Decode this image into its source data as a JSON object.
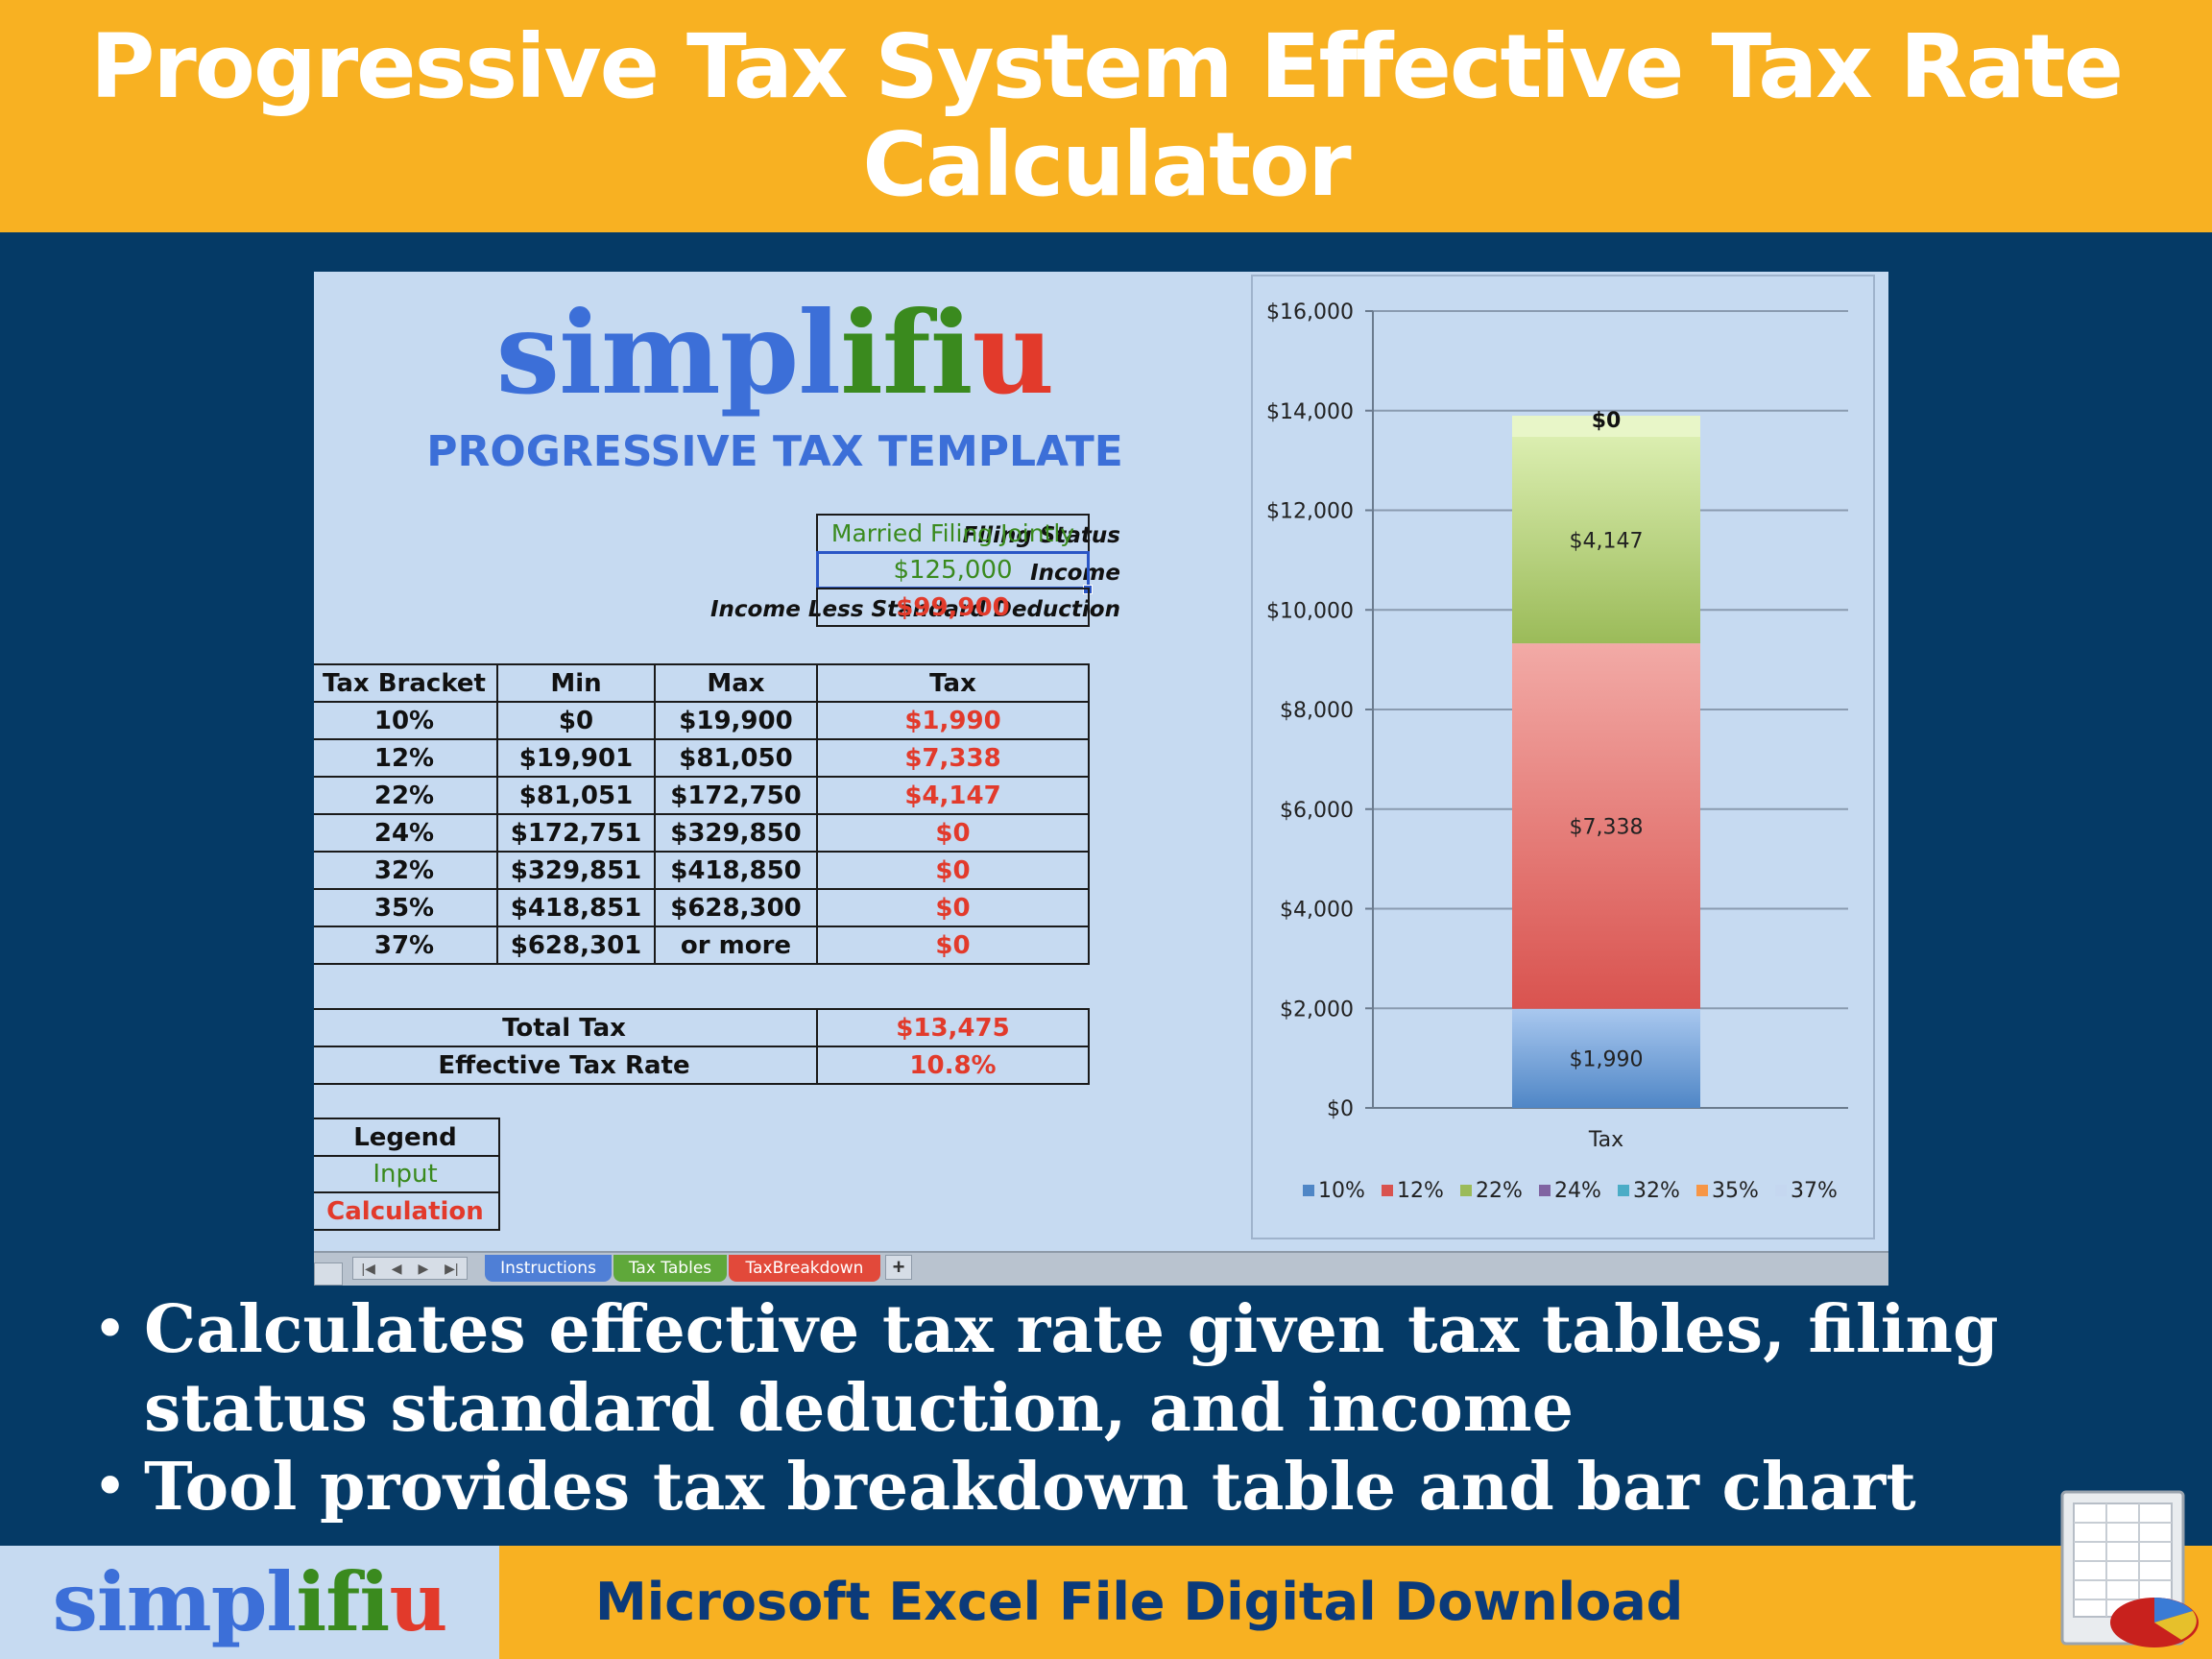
{
  "banner": {
    "title_line1": "Progressive Tax System Effective Tax Rate",
    "title_line2": "Calculator"
  },
  "sheet": {
    "brand": {
      "part1": "simpl",
      "part2": "ifi",
      "part3": "u"
    },
    "template_title": "PROGRESSIVE TAX TEMPLATE",
    "inputs": {
      "filing_status_label": "Filing Status",
      "filing_status_value": "Married Filing Jointly",
      "income_label": "Income",
      "income_value": "$125,000",
      "deduction_label": "Income Less Standard Deduction",
      "deduction_value": "$99,900"
    },
    "bracket_table": {
      "headers": [
        "Tax Bracket",
        "Min",
        "Max",
        "Tax"
      ],
      "rows": [
        [
          "10%",
          "$0",
          "$19,900",
          "$1,990"
        ],
        [
          "12%",
          "$19,901",
          "$81,050",
          "$7,338"
        ],
        [
          "22%",
          "$81,051",
          "$172,750",
          "$4,147"
        ],
        [
          "24%",
          "$172,751",
          "$329,850",
          "$0"
        ],
        [
          "32%",
          "$329,851",
          "$418,850",
          "$0"
        ],
        [
          "35%",
          "$418,851",
          "$628,300",
          "$0"
        ],
        [
          "37%",
          "$628,301",
          "or more",
          "$0"
        ]
      ]
    },
    "totals": {
      "total_tax_label": "Total Tax",
      "total_tax_value": "$13,475",
      "effective_rate_label": "Effective Tax Rate",
      "effective_rate_value": "10.8%"
    },
    "legend_box": {
      "title": "Legend",
      "input": "Input",
      "calculation": "Calculation"
    },
    "tabs": [
      "Instructions",
      "Tax Tables",
      "TaxBreakdown"
    ],
    "tab_plus": "+",
    "tab_nav": [
      "|◀",
      "◀",
      "▶",
      "▶|"
    ]
  },
  "chart_data": {
    "type": "bar",
    "stacked": true,
    "categories": [
      "Tax"
    ],
    "series": [
      {
        "name": "10%",
        "values": [
          1990
        ],
        "color": "#4f86c6",
        "label": "$1,990"
      },
      {
        "name": "12%",
        "values": [
          7338
        ],
        "color": "#d9534f",
        "label": "$7,338"
      },
      {
        "name": "22%",
        "values": [
          4147
        ],
        "color": "#9bbb59",
        "label": "$4,147"
      },
      {
        "name": "24%",
        "values": [
          0
        ],
        "color": "#8064a2",
        "label": ""
      },
      {
        "name": "32%",
        "values": [
          0
        ],
        "color": "#4bacc6",
        "label": ""
      },
      {
        "name": "35%",
        "values": [
          0
        ],
        "color": "#f79646",
        "label": ""
      },
      {
        "name": "37%",
        "values": [
          0
        ],
        "color": "#c5d7f0",
        "label": "$0"
      }
    ],
    "yticks": [
      "$0",
      "$2,000",
      "$4,000",
      "$6,000",
      "$8,000",
      "$10,000",
      "$12,000",
      "$14,000",
      "$16,000"
    ],
    "ylim": [
      0,
      16000
    ],
    "grid": true,
    "legend_position": "bottom"
  },
  "bullets": [
    "Calculates effective tax rate given tax tables, filing status standard deduction, and income",
    "Tool provides tax breakdown table and bar chart"
  ],
  "footer": {
    "brand": {
      "part1": "simpl",
      "part2": "ifi",
      "part3": "u"
    },
    "text": "Microsoft Excel File Digital Download"
  },
  "colors": {
    "banner": "#f8b122",
    "background": "#053a66",
    "sheet": "#c6daf1"
  }
}
